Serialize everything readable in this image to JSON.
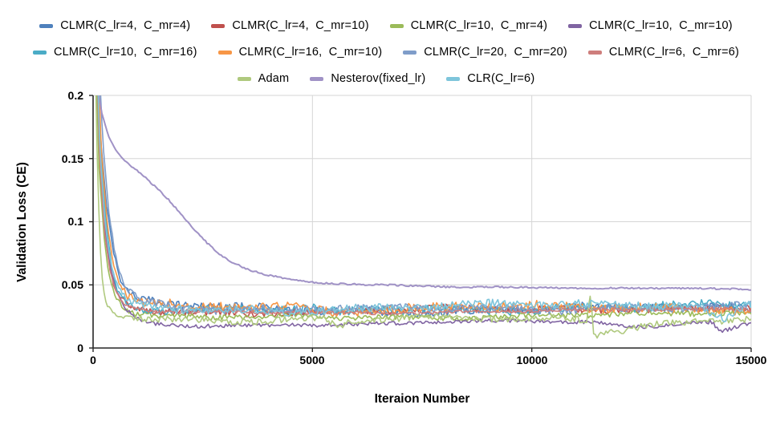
{
  "chart_data": {
    "type": "line",
    "title": "",
    "xlabel": "Iteraion Number",
    "ylabel": "Validation Loss (CE)",
    "xlim": [
      0,
      15000
    ],
    "ylim": [
      0,
      0.2
    ],
    "xticks": [
      0,
      5000,
      10000,
      15000
    ],
    "xtick_labels": [
      "0",
      "5000",
      "10000",
      "15000"
    ],
    "yticks": [
      0,
      0.05,
      0.1,
      0.15,
      0.2
    ],
    "ytick_labels": [
      "0",
      "0.05",
      "0.1",
      "0.15",
      "0.2"
    ],
    "grid": true,
    "grid_color": "#D6D6D6",
    "axis_color": "#262626",
    "legend_position": "top",
    "series": [
      {
        "name": "CLMR(C_lr=4,  C_mr=4)",
        "color": "#4F81BD",
        "noise": 0.0035,
        "points": [
          [
            30,
            0.3
          ],
          [
            160,
            0.17
          ],
          [
            300,
            0.115
          ],
          [
            450,
            0.078
          ],
          [
            600,
            0.055
          ],
          [
            800,
            0.043
          ],
          [
            1100,
            0.037
          ],
          [
            1600,
            0.035
          ],
          [
            2200,
            0.033
          ],
          [
            3000,
            0.031
          ],
          [
            5000,
            0.03
          ],
          [
            8000,
            0.03
          ],
          [
            11000,
            0.031
          ],
          [
            15000,
            0.032
          ]
        ]
      },
      {
        "name": "CLMR(C_lr=4,  C_mr=10)",
        "color": "#C0504D",
        "noise": 0.0028,
        "points": [
          [
            20,
            0.3
          ],
          [
            140,
            0.155
          ],
          [
            250,
            0.1
          ],
          [
            350,
            0.072
          ],
          [
            450,
            0.052
          ],
          [
            600,
            0.04
          ],
          [
            900,
            0.033
          ],
          [
            1400,
            0.03
          ],
          [
            2500,
            0.029
          ],
          [
            5000,
            0.029
          ],
          [
            8000,
            0.03
          ],
          [
            11000,
            0.031
          ],
          [
            13000,
            0.032
          ],
          [
            15000,
            0.032
          ]
        ]
      },
      {
        "name": "CLMR(C_lr=10,  C_mr=4)",
        "color": "#9BBB59",
        "noise": 0.0022,
        "points": [
          [
            15,
            0.3
          ],
          [
            130,
            0.145
          ],
          [
            250,
            0.088
          ],
          [
            350,
            0.06
          ],
          [
            500,
            0.042
          ],
          [
            700,
            0.032
          ],
          [
            1000,
            0.027
          ],
          [
            1500,
            0.025
          ],
          [
            2500,
            0.024
          ],
          [
            5000,
            0.024
          ],
          [
            8000,
            0.025
          ],
          [
            11000,
            0.026
          ],
          [
            15000,
            0.027
          ]
        ]
      },
      {
        "name": "CLMR(C_lr=10,  C_mr=10)",
        "color": "#8064A2",
        "noise": 0.0016,
        "points": [
          [
            25,
            0.3
          ],
          [
            160,
            0.15
          ],
          [
            280,
            0.092
          ],
          [
            400,
            0.062
          ],
          [
            550,
            0.043
          ],
          [
            750,
            0.03
          ],
          [
            1000,
            0.023
          ],
          [
            1300,
            0.019
          ],
          [
            2000,
            0.018
          ],
          [
            3000,
            0.018
          ],
          [
            4500,
            0.019
          ],
          [
            6000,
            0.019
          ],
          [
            8000,
            0.02
          ],
          [
            10000,
            0.021
          ],
          [
            11500,
            0.02
          ],
          [
            12200,
            0.017
          ],
          [
            12800,
            0.018
          ],
          [
            13500,
            0.021
          ],
          [
            14100,
            0.021
          ],
          [
            14300,
            0.0135
          ],
          [
            14500,
            0.015
          ],
          [
            14800,
            0.019
          ],
          [
            15000,
            0.02
          ]
        ]
      },
      {
        "name": "CLMR(C_lr=10,  C_mr=16)",
        "color": "#4BACC6",
        "noise": 0.0035,
        "points": [
          [
            28,
            0.3
          ],
          [
            170,
            0.155
          ],
          [
            300,
            0.098
          ],
          [
            420,
            0.066
          ],
          [
            550,
            0.047
          ],
          [
            750,
            0.037
          ],
          [
            1100,
            0.033
          ],
          [
            1800,
            0.031
          ],
          [
            3000,
            0.03
          ],
          [
            5000,
            0.03
          ],
          [
            5700,
            0.026
          ],
          [
            6200,
            0.03
          ],
          [
            8000,
            0.031
          ],
          [
            11000,
            0.032
          ],
          [
            15000,
            0.033
          ]
        ]
      },
      {
        "name": "CLMR(C_lr=16,  C_mr=10)",
        "color": "#F79646",
        "noise": 0.0038,
        "points": [
          [
            32,
            0.3
          ],
          [
            190,
            0.155
          ],
          [
            320,
            0.098
          ],
          [
            450,
            0.068
          ],
          [
            600,
            0.05
          ],
          [
            800,
            0.04
          ],
          [
            1200,
            0.034
          ],
          [
            2000,
            0.032
          ],
          [
            3300,
            0.033
          ],
          [
            4200,
            0.034
          ],
          [
            5000,
            0.031
          ],
          [
            6500,
            0.031
          ],
          [
            8200,
            0.033
          ],
          [
            9000,
            0.032
          ],
          [
            11000,
            0.031
          ],
          [
            13000,
            0.031
          ],
          [
            15000,
            0.032
          ]
        ]
      },
      {
        "name": "CLMR(C_lr=20,  C_mr=20)",
        "color": "#7F9DC9",
        "noise": 0.0032,
        "points": [
          [
            40,
            0.3
          ],
          [
            220,
            0.165
          ],
          [
            360,
            0.108
          ],
          [
            500,
            0.075
          ],
          [
            650,
            0.055
          ],
          [
            850,
            0.044
          ],
          [
            1200,
            0.038
          ],
          [
            1800,
            0.034
          ],
          [
            2800,
            0.031
          ],
          [
            5000,
            0.03
          ],
          [
            8000,
            0.031
          ],
          [
            11000,
            0.032
          ],
          [
            15000,
            0.032
          ]
        ]
      },
      {
        "name": "CLMR(C_lr=6,  C_mr=6)",
        "color": "#CE7E7C",
        "noise": 0.0014,
        "points": [
          [
            22,
            0.3
          ],
          [
            150,
            0.148
          ],
          [
            260,
            0.092
          ],
          [
            380,
            0.062
          ],
          [
            520,
            0.044
          ],
          [
            700,
            0.034
          ],
          [
            1000,
            0.03
          ],
          [
            1600,
            0.028
          ],
          [
            3000,
            0.028
          ],
          [
            6000,
            0.028
          ],
          [
            9000,
            0.029
          ],
          [
            12000,
            0.03
          ],
          [
            15000,
            0.031
          ]
        ]
      },
      {
        "name": "Adam",
        "color": "#AFC97E",
        "noise": 0.0026,
        "points": [
          [
            10,
            0.3
          ],
          [
            100,
            0.14
          ],
          [
            160,
            0.08
          ],
          [
            220,
            0.05
          ],
          [
            300,
            0.035
          ],
          [
            450,
            0.028
          ],
          [
            700,
            0.025
          ],
          [
            1200,
            0.024
          ],
          [
            2000,
            0.023
          ],
          [
            3000,
            0.022
          ],
          [
            4000,
            0.023
          ],
          [
            5300,
            0.023
          ],
          [
            5600,
            0.015
          ],
          [
            5800,
            0.021
          ],
          [
            6500,
            0.022
          ],
          [
            8000,
            0.023
          ],
          [
            9500,
            0.023
          ],
          [
            10800,
            0.024
          ],
          [
            11250,
            0.023
          ],
          [
            11340,
            0.044
          ],
          [
            11420,
            0.01
          ],
          [
            11600,
            0.013
          ],
          [
            12000,
            0.015
          ],
          [
            12500,
            0.018
          ],
          [
            13000,
            0.02
          ],
          [
            14000,
            0.022
          ],
          [
            15000,
            0.023
          ]
        ]
      },
      {
        "name": "Nesterov(fixed_lr)",
        "color": "#A092C6",
        "noise": 0.0007,
        "points": [
          [
            40,
            0.24
          ],
          [
            110,
            0.205
          ],
          [
            200,
            0.186
          ],
          [
            350,
            0.168
          ],
          [
            500,
            0.158
          ],
          [
            700,
            0.149
          ],
          [
            900,
            0.143
          ],
          [
            1100,
            0.138
          ],
          [
            1400,
            0.128
          ],
          [
            1700,
            0.118
          ],
          [
            2000,
            0.106
          ],
          [
            2300,
            0.094
          ],
          [
            2600,
            0.083
          ],
          [
            2900,
            0.074
          ],
          [
            3200,
            0.067
          ],
          [
            3600,
            0.061
          ],
          [
            4000,
            0.057
          ],
          [
            4500,
            0.054
          ],
          [
            5000,
            0.052
          ],
          [
            5500,
            0.051
          ],
          [
            6500,
            0.05
          ],
          [
            8000,
            0.049
          ],
          [
            10000,
            0.048
          ],
          [
            12000,
            0.047
          ],
          [
            14000,
            0.047
          ],
          [
            15000,
            0.046
          ]
        ]
      },
      {
        "name": "CLR(C_lr=6)",
        "color": "#7EC5DB",
        "noise": 0.0035,
        "points": [
          [
            26,
            0.3
          ],
          [
            160,
            0.152
          ],
          [
            280,
            0.096
          ],
          [
            400,
            0.066
          ],
          [
            550,
            0.049
          ],
          [
            750,
            0.038
          ],
          [
            1100,
            0.034
          ],
          [
            1800,
            0.032
          ],
          [
            3000,
            0.031
          ],
          [
            5000,
            0.031
          ],
          [
            7000,
            0.032
          ],
          [
            9000,
            0.033
          ],
          [
            11000,
            0.034
          ],
          [
            12500,
            0.035
          ],
          [
            13800,
            0.035
          ],
          [
            14150,
            0.027
          ],
          [
            14400,
            0.024
          ],
          [
            14700,
            0.032
          ],
          [
            15000,
            0.036
          ]
        ]
      }
    ]
  }
}
